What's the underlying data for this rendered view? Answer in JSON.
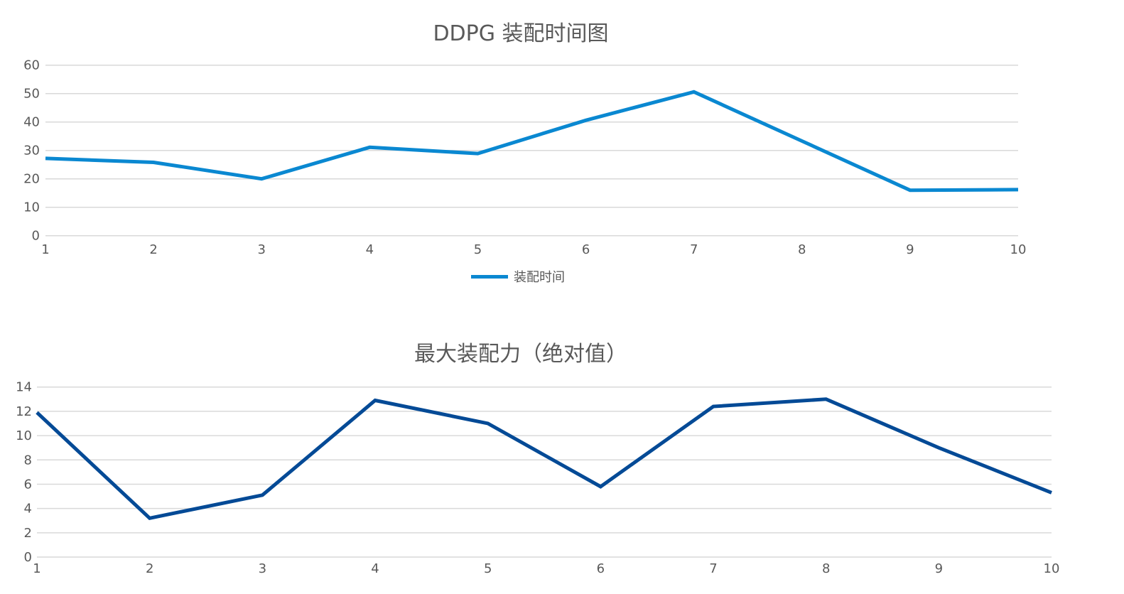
{
  "chart_data": [
    {
      "type": "line",
      "title": "DDPG 装配时间图",
      "xlabel": "",
      "ylabel": "",
      "categories": [
        "1",
        "2",
        "3",
        "4",
        "5",
        "6",
        "7",
        "8",
        "9",
        "10"
      ],
      "series": [
        {
          "name": "装配时间",
          "color": "#0a88d1",
          "values": [
            27.2,
            25.8,
            20.0,
            31.1,
            28.9,
            40.6,
            50.6,
            33.3,
            16.0,
            16.2
          ]
        }
      ],
      "yticks": [
        "0",
        "10",
        "20",
        "30",
        "40",
        "50",
        "60"
      ],
      "ylim": [
        0,
        60
      ],
      "grid": true,
      "legend_position": "bottom"
    },
    {
      "type": "line",
      "title": "最大装配力（绝对值）",
      "xlabel": "",
      "ylabel": "",
      "categories": [
        "1",
        "2",
        "3",
        "4",
        "5",
        "6",
        "7",
        "8",
        "9",
        "10"
      ],
      "series": [
        {
          "name": "最大装配力",
          "color": "#044a96",
          "values": [
            11.9,
            3.2,
            5.1,
            12.9,
            11.0,
            5.8,
            12.4,
            13.0,
            9.0,
            5.3
          ]
        }
      ],
      "yticks": [
        "0",
        "2",
        "4",
        "6",
        "8",
        "10",
        "12",
        "14"
      ],
      "ylim": [
        0,
        14
      ],
      "grid": true,
      "legend_position": "none"
    }
  ],
  "charts": {
    "top": {
      "title": "DDPG 装配时间图",
      "legend_label": "装配时间"
    },
    "bottom": {
      "title": "最大装配力（绝对值）"
    }
  },
  "colors": {
    "grid": "#d9d9d9",
    "text": "#595959"
  }
}
